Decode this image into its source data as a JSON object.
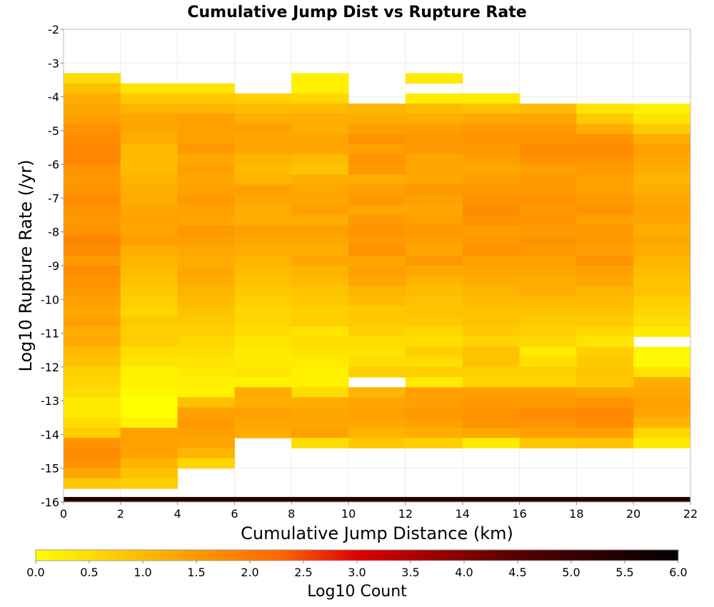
{
  "chart_data": {
    "type": "heatmap",
    "title": "Cumulative Jump Dist vs Rupture Rate",
    "xlabel": "Cumulative Jump Distance (km)",
    "ylabel": "Log10 Rupture Rate (/yr)",
    "xlim": [
      0,
      22
    ],
    "ylim": [
      -16,
      -2
    ],
    "x_ticks": [
      "0",
      "2",
      "4",
      "6",
      "8",
      "10",
      "12",
      "14",
      "16",
      "18",
      "20",
      "22"
    ],
    "y_ticks": [
      "-2",
      "-3",
      "-4",
      "-5",
      "-6",
      "-7",
      "-8",
      "-9",
      "-10",
      "-11",
      "-12",
      "-13",
      "-14",
      "-15",
      "-16"
    ],
    "x_bin_starts": [
      0,
      2,
      4,
      6,
      8,
      10,
      12,
      14,
      16,
      18,
      20
    ],
    "x_bin_width": 2,
    "y_bin_top": -3.3,
    "y_bin_height": 0.3,
    "colorbar": {
      "label": "Log10 Count",
      "range": [
        0,
        6
      ],
      "ticks": [
        "0.0",
        "0.5",
        "1.0",
        "1.5",
        "2.0",
        "2.5",
        "3.0",
        "3.5",
        "4.0",
        "4.5",
        "5.0",
        "5.5",
        "6.0"
      ],
      "colors": [
        "#ffff00",
        "#ff9900",
        "#ff6600",
        "#dd0000",
        "#550000",
        "#000000"
      ]
    },
    "bottom_bin": {
      "y_range": [
        -16,
        -15.85
      ],
      "value": 5.4,
      "note_label": ""
    },
    "columns": [
      [
        0.5,
        0.9,
        1.2,
        1.3,
        1.4,
        1.6,
        1.7,
        1.8,
        1.8,
        1.6,
        1.5,
        1.6,
        1.7,
        1.6,
        1.5,
        1.6,
        1.8,
        1.7,
        1.5,
        1.7,
        1.6,
        1.5,
        1.4,
        1.3,
        1.4,
        1.2,
        1.3,
        1.0,
        0.9,
        0.7,
        0.6,
        0.5,
        0.3,
        0.3,
        0.5,
        0.7,
        1.6,
        1.7,
        1.6,
        1.3,
        0.8
      ],
      [
        null,
        0.4,
        0.8,
        1.1,
        1.3,
        1.3,
        1.2,
        1.0,
        1.0,
        1.0,
        1.1,
        1.2,
        1.2,
        1.3,
        1.4,
        1.3,
        1.4,
        1.2,
        1.1,
        1.0,
        0.9,
        0.8,
        0.7,
        0.6,
        0.8,
        0.7,
        0.7,
        0.5,
        0.4,
        0.2,
        0.2,
        0.1,
        0.0,
        0.0,
        0.2,
        1.4,
        1.4,
        1.4,
        1.1,
        0.9,
        0.7
      ],
      [
        null,
        0.4,
        0.8,
        1.1,
        1.4,
        1.4,
        1.4,
        1.5,
        1.3,
        1.4,
        1.3,
        1.4,
        1.5,
        1.4,
        1.3,
        1.5,
        1.4,
        1.3,
        1.2,
        1.3,
        1.2,
        1.1,
        1.0,
        0.9,
        0.8,
        0.7,
        0.6,
        0.5,
        0.4,
        0.3,
        0.2,
        0.2,
        0.9,
        1.4,
        1.5,
        1.4,
        1.3,
        1.1,
        0.6
      ],
      [
        null,
        null,
        0.7,
        1.0,
        1.2,
        1.4,
        1.3,
        1.3,
        1.1,
        1.0,
        1.1,
        1.4,
        1.3,
        1.2,
        1.2,
        1.4,
        1.3,
        1.2,
        1.1,
        1.0,
        0.9,
        0.8,
        0.7,
        0.6,
        0.6,
        0.5,
        0.4,
        0.3,
        0.3,
        0.4,
        0.2,
        1.2,
        1.2,
        1.4,
        1.3,
        1.2,
        null
      ],
      [
        0.2,
        0.2,
        0.6,
        1.0,
        1.2,
        1.2,
        1.3,
        1.3,
        1.0,
        0.9,
        1.2,
        1.3,
        1.3,
        1.4,
        1.2,
        1.4,
        1.3,
        1.2,
        1.3,
        1.1,
        1.0,
        0.9,
        0.8,
        0.7,
        0.7,
        0.4,
        0.5,
        0.4,
        0.3,
        0.2,
        0.2,
        0.5,
        1.2,
        1.3,
        1.3,
        1.4,
        0.5
      ],
      [
        null,
        null,
        null,
        1.1,
        1.2,
        1.4,
        1.6,
        1.4,
        1.6,
        1.5,
        1.2,
        1.4,
        1.5,
        1.3,
        1.5,
        1.6,
        1.5,
        1.6,
        1.3,
        1.4,
        1.3,
        1.1,
        1.0,
        0.8,
        0.8,
        0.7,
        0.5,
        0.4,
        0.5,
        0.7,
        null,
        1.1,
        1.3,
        1.4,
        1.3,
        1.1,
        0.8
      ],
      [
        0.3,
        null,
        0.3,
        1.0,
        1.2,
        1.4,
        1.5,
        1.5,
        1.3,
        1.3,
        1.3,
        1.5,
        1.4,
        1.3,
        1.4,
        1.5,
        1.4,
        1.3,
        1.5,
        1.3,
        1.1,
        1.0,
        0.9,
        0.9,
        0.8,
        0.6,
        0.5,
        0.7,
        0.5,
        0.7,
        0.3,
        1.4,
        1.4,
        1.5,
        1.4,
        1.2,
        0.7
      ],
      [
        null,
        null,
        0.3,
        0.9,
        1.3,
        1.5,
        1.6,
        1.5,
        1.4,
        1.3,
        1.4,
        1.5,
        1.6,
        1.7,
        1.6,
        1.4,
        1.5,
        1.6,
        1.4,
        1.3,
        1.2,
        1.1,
        1.0,
        0.9,
        0.9,
        0.8,
        0.6,
        0.9,
        0.9,
        0.7,
        0.6,
        1.4,
        1.5,
        1.6,
        1.6,
        1.3,
        0.3
      ],
      [
        null,
        null,
        null,
        1.0,
        1.3,
        1.5,
        1.6,
        1.7,
        1.6,
        1.4,
        1.5,
        1.5,
        1.6,
        1.5,
        1.6,
        1.5,
        1.6,
        1.5,
        1.4,
        1.3,
        1.2,
        1.2,
        1.0,
        0.9,
        0.8,
        0.7,
        0.6,
        0.3,
        0.5,
        0.7,
        0.6,
        1.4,
        1.5,
        1.7,
        1.6,
        1.4,
        0.8
      ],
      [
        null,
        null,
        null,
        0.4,
        0.8,
        1.2,
        1.6,
        1.7,
        1.6,
        1.5,
        1.4,
        1.4,
        1.5,
        1.6,
        1.4,
        1.5,
        1.5,
        1.4,
        1.6,
        1.4,
        1.3,
        1.1,
        1.0,
        0.9,
        0.8,
        0.6,
        0.4,
        0.7,
        0.8,
        0.9,
        0.8,
        1.3,
        1.6,
        1.8,
        1.7,
        1.4,
        0.9
      ],
      [
        null,
        null,
        null,
        0.2,
        0.4,
        0.8,
        1.2,
        1.4,
        1.3,
        1.2,
        1.1,
        1.2,
        1.3,
        1.4,
        1.3,
        1.2,
        1.3,
        1.2,
        1.1,
        1.0,
        0.9,
        0.9,
        0.7,
        0.6,
        0.5,
        0.3,
        null,
        0.1,
        0.1,
        0.4,
        1.2,
        1.3,
        1.4,
        1.3,
        1.1,
        0.6,
        0.3
      ]
    ]
  }
}
